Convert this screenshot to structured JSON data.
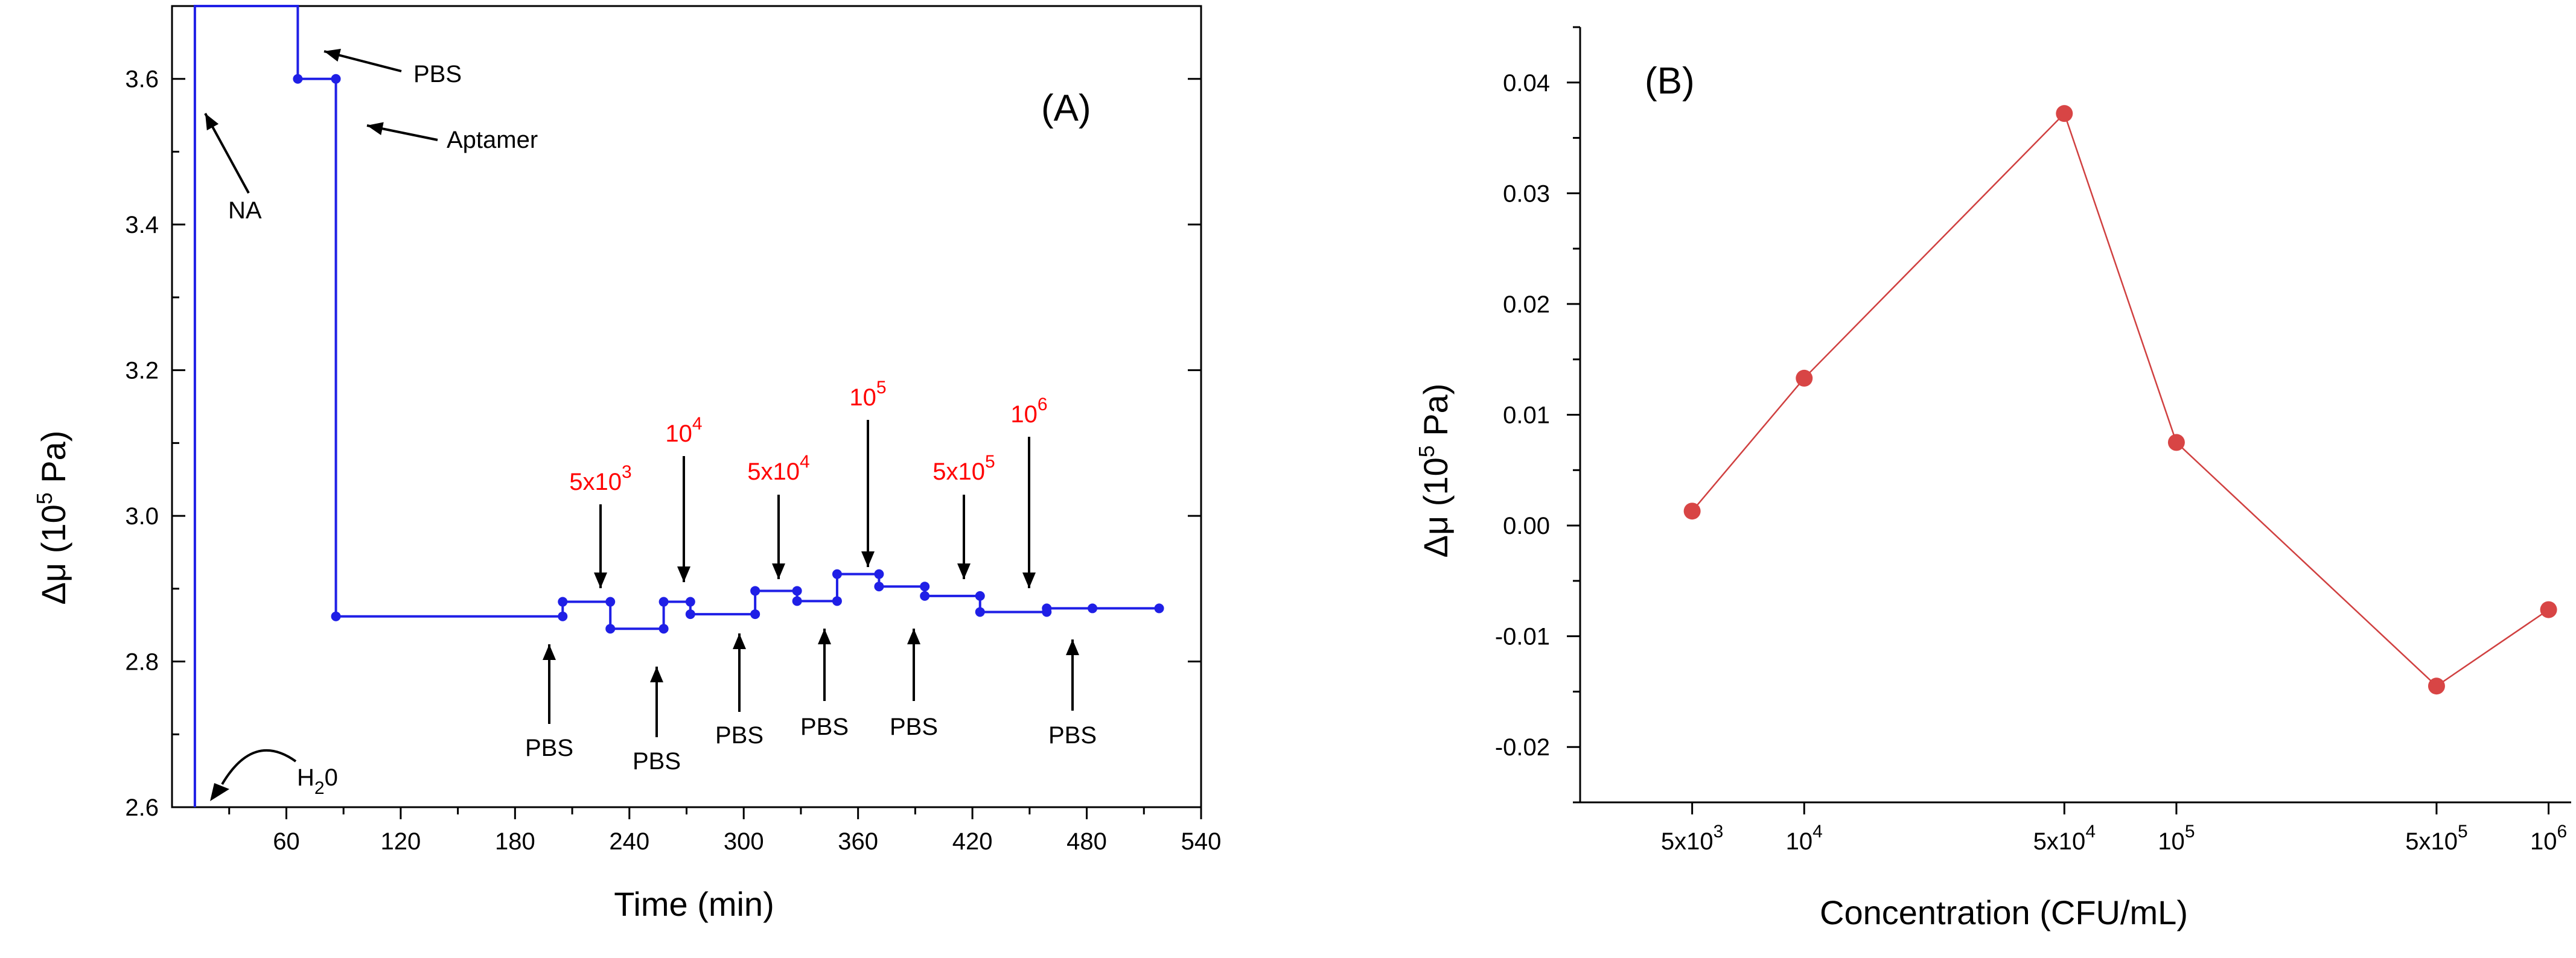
{
  "chart_data": [
    {
      "type": "line",
      "panel_label": "(A)",
      "xlabel": "Time (min)",
      "ylabel": {
        "main": "Δμ (10",
        "sup": "5",
        "tail": " Pa)"
      },
      "xlim": [
        0,
        540
      ],
      "ylim": [
        2.6,
        3.7
      ],
      "xticks": [
        60,
        120,
        180,
        240,
        300,
        360,
        420,
        480,
        540
      ],
      "yticks": [
        2.6,
        2.8,
        3.0,
        3.2,
        3.4,
        3.6
      ],
      "ytick_labels": [
        "2.6",
        "2.8",
        "3.0",
        "3.2",
        "3.4",
        "3.6"
      ],
      "line_color": "#1f1fe6",
      "series": [
        {
          "x": [
            12,
            12,
            66,
            66,
            86,
            86,
            205,
            205,
            230,
            230,
            258,
            258,
            272,
            272,
            306,
            306,
            328,
            328,
            349,
            349,
            371,
            371,
            395,
            395,
            424,
            424,
            459,
            459,
            483,
            518
          ],
          "y": [
            2.6,
            3.7,
            3.7,
            3.6,
            3.6,
            2.862,
            2.862,
            2.882,
            2.882,
            2.845,
            2.845,
            2.882,
            2.882,
            2.865,
            2.865,
            2.897,
            2.897,
            2.883,
            2.883,
            2.92,
            2.92,
            2.903,
            2.903,
            2.89,
            2.89,
            2.868,
            2.868,
            2.873,
            2.873,
            2.873
          ]
        }
      ],
      "markers": {
        "x": [
          66,
          86,
          86,
          205,
          205,
          230,
          230,
          258,
          258,
          272,
          272,
          306,
          306,
          328,
          328,
          349,
          349,
          371,
          371,
          395,
          395,
          424,
          424,
          459,
          459,
          483,
          518
        ],
        "y": [
          3.6,
          3.6,
          2.862,
          2.862,
          2.882,
          2.882,
          2.845,
          2.845,
          2.882,
          2.882,
          2.865,
          2.865,
          2.897,
          2.897,
          2.883,
          2.883,
          2.92,
          2.92,
          2.903,
          2.903,
          2.89,
          2.89,
          2.868,
          2.868,
          2.873,
          2.873,
          2.873
        ]
      },
      "annotations": {
        "pbs_top": "PBS",
        "aptamer": "Aptamer",
        "na": "NA",
        "h2o": {
          "main": "H",
          "sub": "2",
          "tail": "0"
        },
        "pbs_bottom": [
          "PBS",
          "PBS",
          "PBS",
          "PBS",
          "PBS",
          "PBS"
        ],
        "concentrations": [
          {
            "base": "5x10",
            "exp": "3"
          },
          {
            "base": "10",
            "exp": "4"
          },
          {
            "base": "5x10",
            "exp": "4"
          },
          {
            "base": "10",
            "exp": "5"
          },
          {
            "base": "5x10",
            "exp": "5"
          },
          {
            "base": "10",
            "exp": "6"
          }
        ]
      }
    },
    {
      "type": "line",
      "panel_label": "(B)",
      "xlabel": "Concentration (CFU/mL)",
      "ylabel": {
        "main": "Δμ (10",
        "sup": "5",
        "tail": " Pa)"
      },
      "ylim": [
        -0.025,
        0.045
      ],
      "yticks": [
        -0.02,
        -0.01,
        0.0,
        0.01,
        0.02,
        0.03,
        0.04
      ],
      "ytick_labels": [
        "-0.02",
        "-0.01",
        "0.00",
        "0.01",
        "0.02",
        "0.03",
        "0.04"
      ],
      "x_scale": "log",
      "xlim": [
        2500,
        1150000
      ],
      "line_color": "#d04040",
      "marker_color": "#d84545",
      "categories": [
        {
          "base": "5x10",
          "exp": "3"
        },
        {
          "base": "10",
          "exp": "4"
        },
        {
          "base": "5x10",
          "exp": "4"
        },
        {
          "base": "10",
          "exp": "5"
        },
        {
          "base": "5x10",
          "exp": "5"
        },
        {
          "base": "10",
          "exp": "6"
        }
      ],
      "x": [
        5000,
        10000,
        50000,
        100000,
        500000,
        1000000
      ],
      "values": [
        0.0013,
        0.0133,
        0.0372,
        0.0075,
        -0.0145,
        -0.0076
      ]
    }
  ]
}
